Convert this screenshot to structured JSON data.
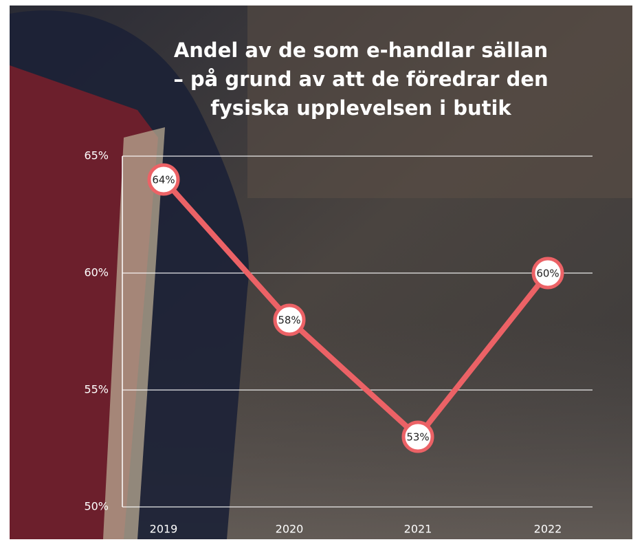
{
  "chart_data": {
    "type": "line",
    "title": [
      "Andel av de som e-handlar sällan",
      "– på grund av att de föredrar den",
      "fysiska upplevelsen i butik"
    ],
    "categories": [
      "2019",
      "2020",
      "2021",
      "2022"
    ],
    "values": [
      64,
      58,
      53,
      60
    ],
    "value_labels": [
      "64%",
      "58%",
      "53%",
      "60%"
    ],
    "color": "#ec6266",
    "ylim": [
      50,
      65
    ],
    "yticks": [
      {
        "value": 50,
        "label": "50%"
      },
      {
        "value": 55,
        "label": "55%"
      },
      {
        "value": 60,
        "label": "60%"
      },
      {
        "value": 65,
        "label": "65%"
      }
    ],
    "grid": true
  }
}
